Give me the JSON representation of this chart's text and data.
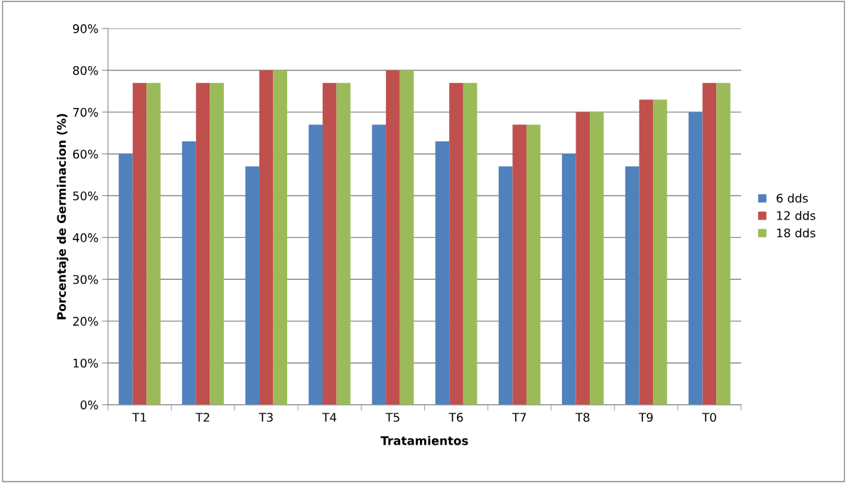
{
  "chart_data": {
    "type": "bar",
    "xlabel": "Tratamientos",
    "ylabel": "Porcentaje de Germinacion (%)",
    "categories": [
      "T1",
      "T2",
      "T3",
      "T4",
      "T5",
      "T6",
      "T7",
      "T8",
      "T9",
      "T0"
    ],
    "series": [
      {
        "name": "6 dds",
        "color": "#4f81bd",
        "values": [
          60,
          63,
          57,
          67,
          67,
          63,
          57,
          60,
          57,
          70
        ]
      },
      {
        "name": "12 dds",
        "color": "#c0504d",
        "values": [
          77,
          77,
          80,
          77,
          80,
          77,
          67,
          70,
          73,
          77
        ]
      },
      {
        "name": "18 dds",
        "color": "#9bbb59",
        "values": [
          77,
          77,
          80,
          77,
          80,
          77,
          67,
          70,
          73,
          77
        ]
      }
    ],
    "ylim": [
      0,
      90
    ],
    "yticks": [
      {
        "value": 0,
        "label": "0%"
      },
      {
        "value": 10,
        "label": "10%"
      },
      {
        "value": 20,
        "label": "20%"
      },
      {
        "value": 30,
        "label": "30%"
      },
      {
        "value": 40,
        "label": "40%"
      },
      {
        "value": 50,
        "label": "50%"
      },
      {
        "value": 60,
        "label": "60%"
      },
      {
        "value": 70,
        "label": "70%"
      },
      {
        "value": 80,
        "label": "80%"
      },
      {
        "value": 90,
        "label": "90%"
      }
    ],
    "grid": "y",
    "legend": "right"
  }
}
